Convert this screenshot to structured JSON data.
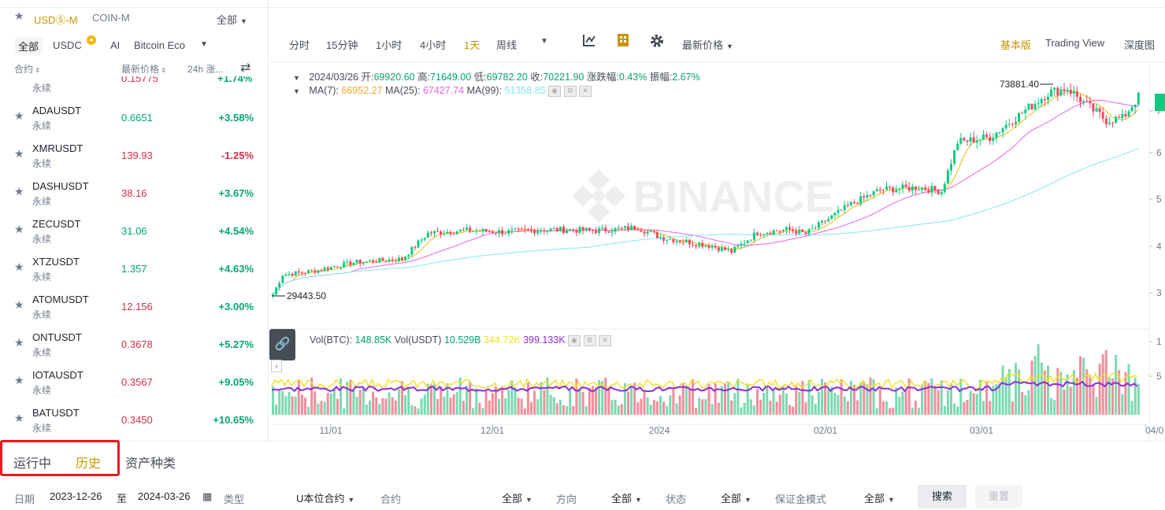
{
  "left_panel": {
    "market_tabs": [
      "USDⓈ-M",
      "COIN-M"
    ],
    "filter_all": "全部",
    "sub_tabs": [
      "全部",
      "USDC",
      "AI",
      "Bitcoin Eco"
    ],
    "usdc_badge": "new-badge-icon",
    "columns": {
      "contract": "合约",
      "last_price": "最新价格",
      "change": "24h 涨..."
    },
    "partial_row": {
      "price": "0.15775",
      "change": "+1.74%",
      "perp": "永续"
    },
    "rows": [
      {
        "symbol": "ADAUSDT",
        "perp": "永续",
        "price": "0.6651",
        "change": "+3.58%",
        "dir": "up"
      },
      {
        "symbol": "XMRUSDT",
        "perp": "永续",
        "price": "139.93",
        "change": "-1.25%",
        "dir": "down"
      },
      {
        "symbol": "DASHUSDT",
        "perp": "永续",
        "price": "38.16",
        "change": "+3.67%",
        "dir": "down"
      },
      {
        "symbol": "ZECUSDT",
        "perp": "永续",
        "price": "31.06",
        "change": "+4.54%",
        "dir": "up"
      },
      {
        "symbol": "XTZUSDT",
        "perp": "永续",
        "price": "1.357",
        "change": "+4.63%",
        "dir": "up"
      },
      {
        "symbol": "ATOMUSDT",
        "perp": "永续",
        "price": "12.156",
        "change": "+3.00%",
        "dir": "down"
      },
      {
        "symbol": "ONTUSDT",
        "perp": "永续",
        "price": "0.3678",
        "change": "+5.27%",
        "dir": "down"
      },
      {
        "symbol": "IOTAUSDT",
        "perp": "永续",
        "price": "0.3567",
        "change": "+9.05%",
        "dir": "down"
      },
      {
        "symbol": "BATUSDT",
        "perp": "永续",
        "price": "0.3450",
        "change": "+10.65%",
        "dir": "down"
      }
    ]
  },
  "toolbar": {
    "intervals": [
      "分时",
      "15分钟",
      "1小时",
      "4小时",
      "1天",
      "周线"
    ],
    "active_interval": "1天",
    "price_type": "最新价格",
    "views": [
      "基本版",
      "Trading View",
      "深度图"
    ],
    "active_view": "基本版"
  },
  "ohlc": {
    "date": "2024/03/26",
    "open_label": "开:",
    "open": "69920.60",
    "high_label": "高:",
    "high": "71649.00",
    "low_label": "低:",
    "low": "69782.20",
    "close_label": "收:",
    "close": "70221.90",
    "chg_label": "涨跌幅:",
    "chg": "0.43%",
    "amp_label": "振幅:",
    "amp": "2.67%"
  },
  "ma": {
    "ma7_label": "MA(7):",
    "ma7": "66952.27",
    "ma25_label": "MA(25):",
    "ma25": "67427.74",
    "ma99_label": "MA(99):",
    "ma99": "51358.85"
  },
  "vol": {
    "btc_label": "Vol(BTC):",
    "btc": "148.85K",
    "usdt_label": "Vol(USDT)",
    "usdt": "10.529B",
    "ma1": "344.72K",
    "ma2": "399.133K"
  },
  "chart_labels": {
    "max_price": "73881.40",
    "min_price": "29443.50",
    "watermark": "BINANCE",
    "x_ticks": [
      "11/01",
      "12/01",
      "2024",
      "02/01",
      "03/01",
      "04/0"
    ],
    "y_ticks_price": [
      "7",
      "6",
      "5",
      "4",
      "3"
    ],
    "y_ticks_vol": [
      "1",
      "5"
    ]
  },
  "colors": {
    "up": "#0ecb81",
    "down": "#f6465d",
    "ma7": "#f0b90b",
    "ma25": "#e862e6",
    "ma99": "#82e8f0",
    "accent": "#c99400"
  },
  "bottom": {
    "tabs": [
      "运行中",
      "历史"
    ],
    "active_tab": "历史",
    "sub_tab": "资产种类",
    "date_label": "日期",
    "date_from": "2023-12-26",
    "date_to_label": "至",
    "date_to": "2024-03-26",
    "type_label": "类型",
    "type_value": "U本位合约",
    "contract_label": "合约",
    "contract_value": "全部",
    "direction_label": "方向",
    "direction_value": "全部",
    "status_label": "状态",
    "status_value": "全部",
    "margin_label": "保证金模式",
    "margin_value": "全部",
    "search": "搜索",
    "reset": "重置"
  }
}
